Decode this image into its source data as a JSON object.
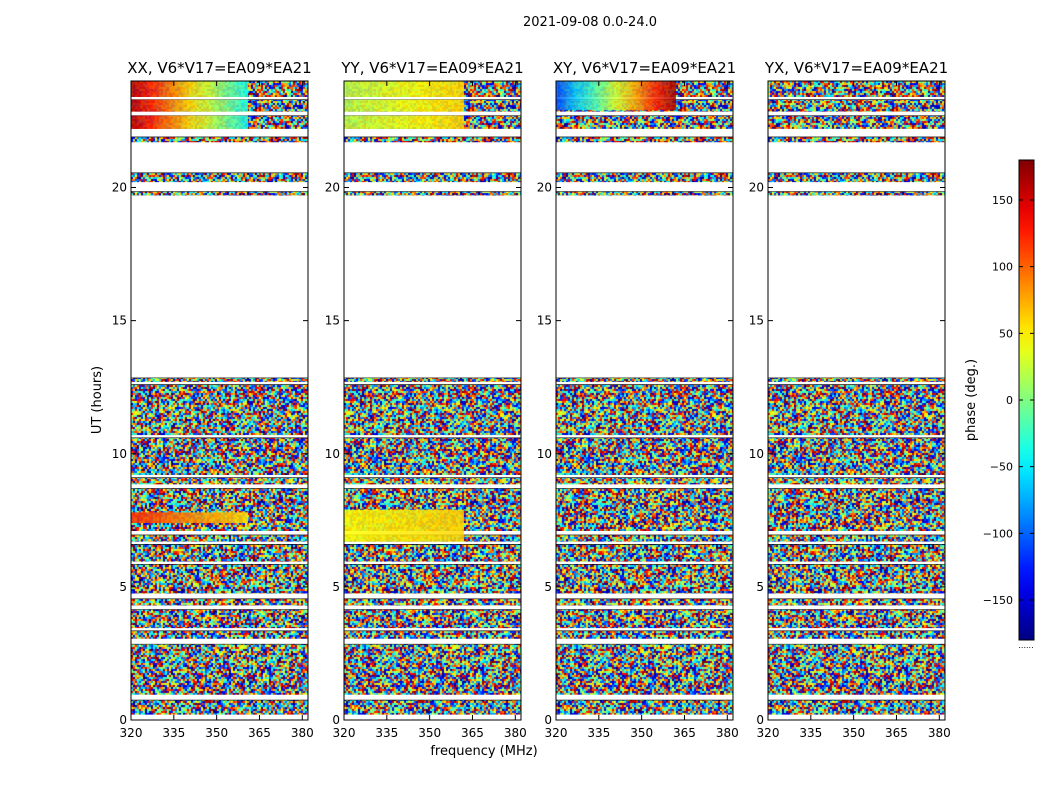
{
  "chart_data": {
    "type": "heatmap",
    "title": "2021-09-08 0.0-24.0",
    "xlabel": "frequency (MHz)",
    "ylabel": "UT (hours)",
    "xlim": [
      320,
      382
    ],
    "ylim": [
      0,
      24
    ],
    "xticks": [
      320,
      335,
      350,
      365,
      380
    ],
    "xtick_labels": [
      "320",
      "335",
      "350",
      "365",
      "380"
    ],
    "yticks": [
      0,
      5,
      10,
      15,
      20
    ],
    "ytick_labels": [
      "0",
      "5",
      "10",
      "15",
      "20"
    ],
    "colorbar": {
      "label": "phase (deg.)",
      "range": [
        -180,
        180
      ],
      "ticks": [
        150,
        100,
        50,
        0,
        -50,
        -100,
        -150
      ],
      "tick_labels": [
        "150",
        "100",
        "50",
        "0",
        "−50",
        "−100",
        "−150"
      ],
      "colormap": "jet",
      "footnote": "......"
    },
    "data_intervals_hours": [
      [
        0.2,
        0.75
      ],
      [
        0.95,
        2.85
      ],
      [
        3.05,
        3.35
      ],
      [
        3.45,
        4.15
      ],
      [
        4.3,
        4.55
      ],
      [
        4.75,
        5.85
      ],
      [
        5.95,
        6.6
      ],
      [
        6.7,
        6.95
      ],
      [
        7.1,
        8.7
      ],
      [
        8.85,
        9.1
      ],
      [
        9.2,
        10.6
      ],
      [
        10.7,
        12.6
      ],
      [
        12.7,
        12.85
      ],
      [
        19.7,
        19.85
      ],
      [
        20.2,
        20.55
      ],
      [
        21.7,
        21.9
      ],
      [
        22.2,
        22.7
      ],
      [
        22.85,
        23.3
      ],
      [
        23.4,
        24.0
      ]
    ],
    "panels": [
      {
        "title": "XX, V6*V17=EA09*EA21",
        "coherent_features": [
          {
            "t0": 23.4,
            "t1": 24.0,
            "f0": 320,
            "f1": 361,
            "phase_start": 160,
            "phase_end": -40
          },
          {
            "t0": 22.85,
            "t1": 23.3,
            "f0": 320,
            "f1": 361,
            "phase_start": 160,
            "phase_end": -40
          },
          {
            "t0": 22.2,
            "t1": 22.7,
            "f0": 320,
            "f1": 361,
            "phase_start": 160,
            "phase_end": -40
          },
          {
            "t0": 7.4,
            "t1": 7.8,
            "f0": 320,
            "f1": 361,
            "phase_start": 120,
            "phase_end": 55
          }
        ]
      },
      {
        "title": "YY, V6*V17=EA09*EA21",
        "coherent_features": [
          {
            "t0": 23.4,
            "t1": 24.0,
            "f0": 320,
            "f1": 362,
            "phase_start": 20,
            "phase_end": 60
          },
          {
            "t0": 22.85,
            "t1": 23.3,
            "f0": 320,
            "f1": 362,
            "phase_start": 20,
            "phase_end": 60
          },
          {
            "t0": 22.2,
            "t1": 22.7,
            "f0": 320,
            "f1": 362,
            "phase_start": 20,
            "phase_end": 60
          },
          {
            "t0": 6.7,
            "t1": 7.9,
            "f0": 320,
            "f1": 362,
            "phase_start": 45,
            "phase_end": 60
          }
        ]
      },
      {
        "title": "XY, V6*V17=EA09*EA21",
        "coherent_features": [
          {
            "t0": 22.9,
            "t1": 24.0,
            "f0": 320,
            "f1": 362,
            "phase_start": -110,
            "phase_end": 170
          }
        ]
      },
      {
        "title": "YX, V6*V17=EA09*EA21",
        "coherent_features": []
      }
    ]
  }
}
